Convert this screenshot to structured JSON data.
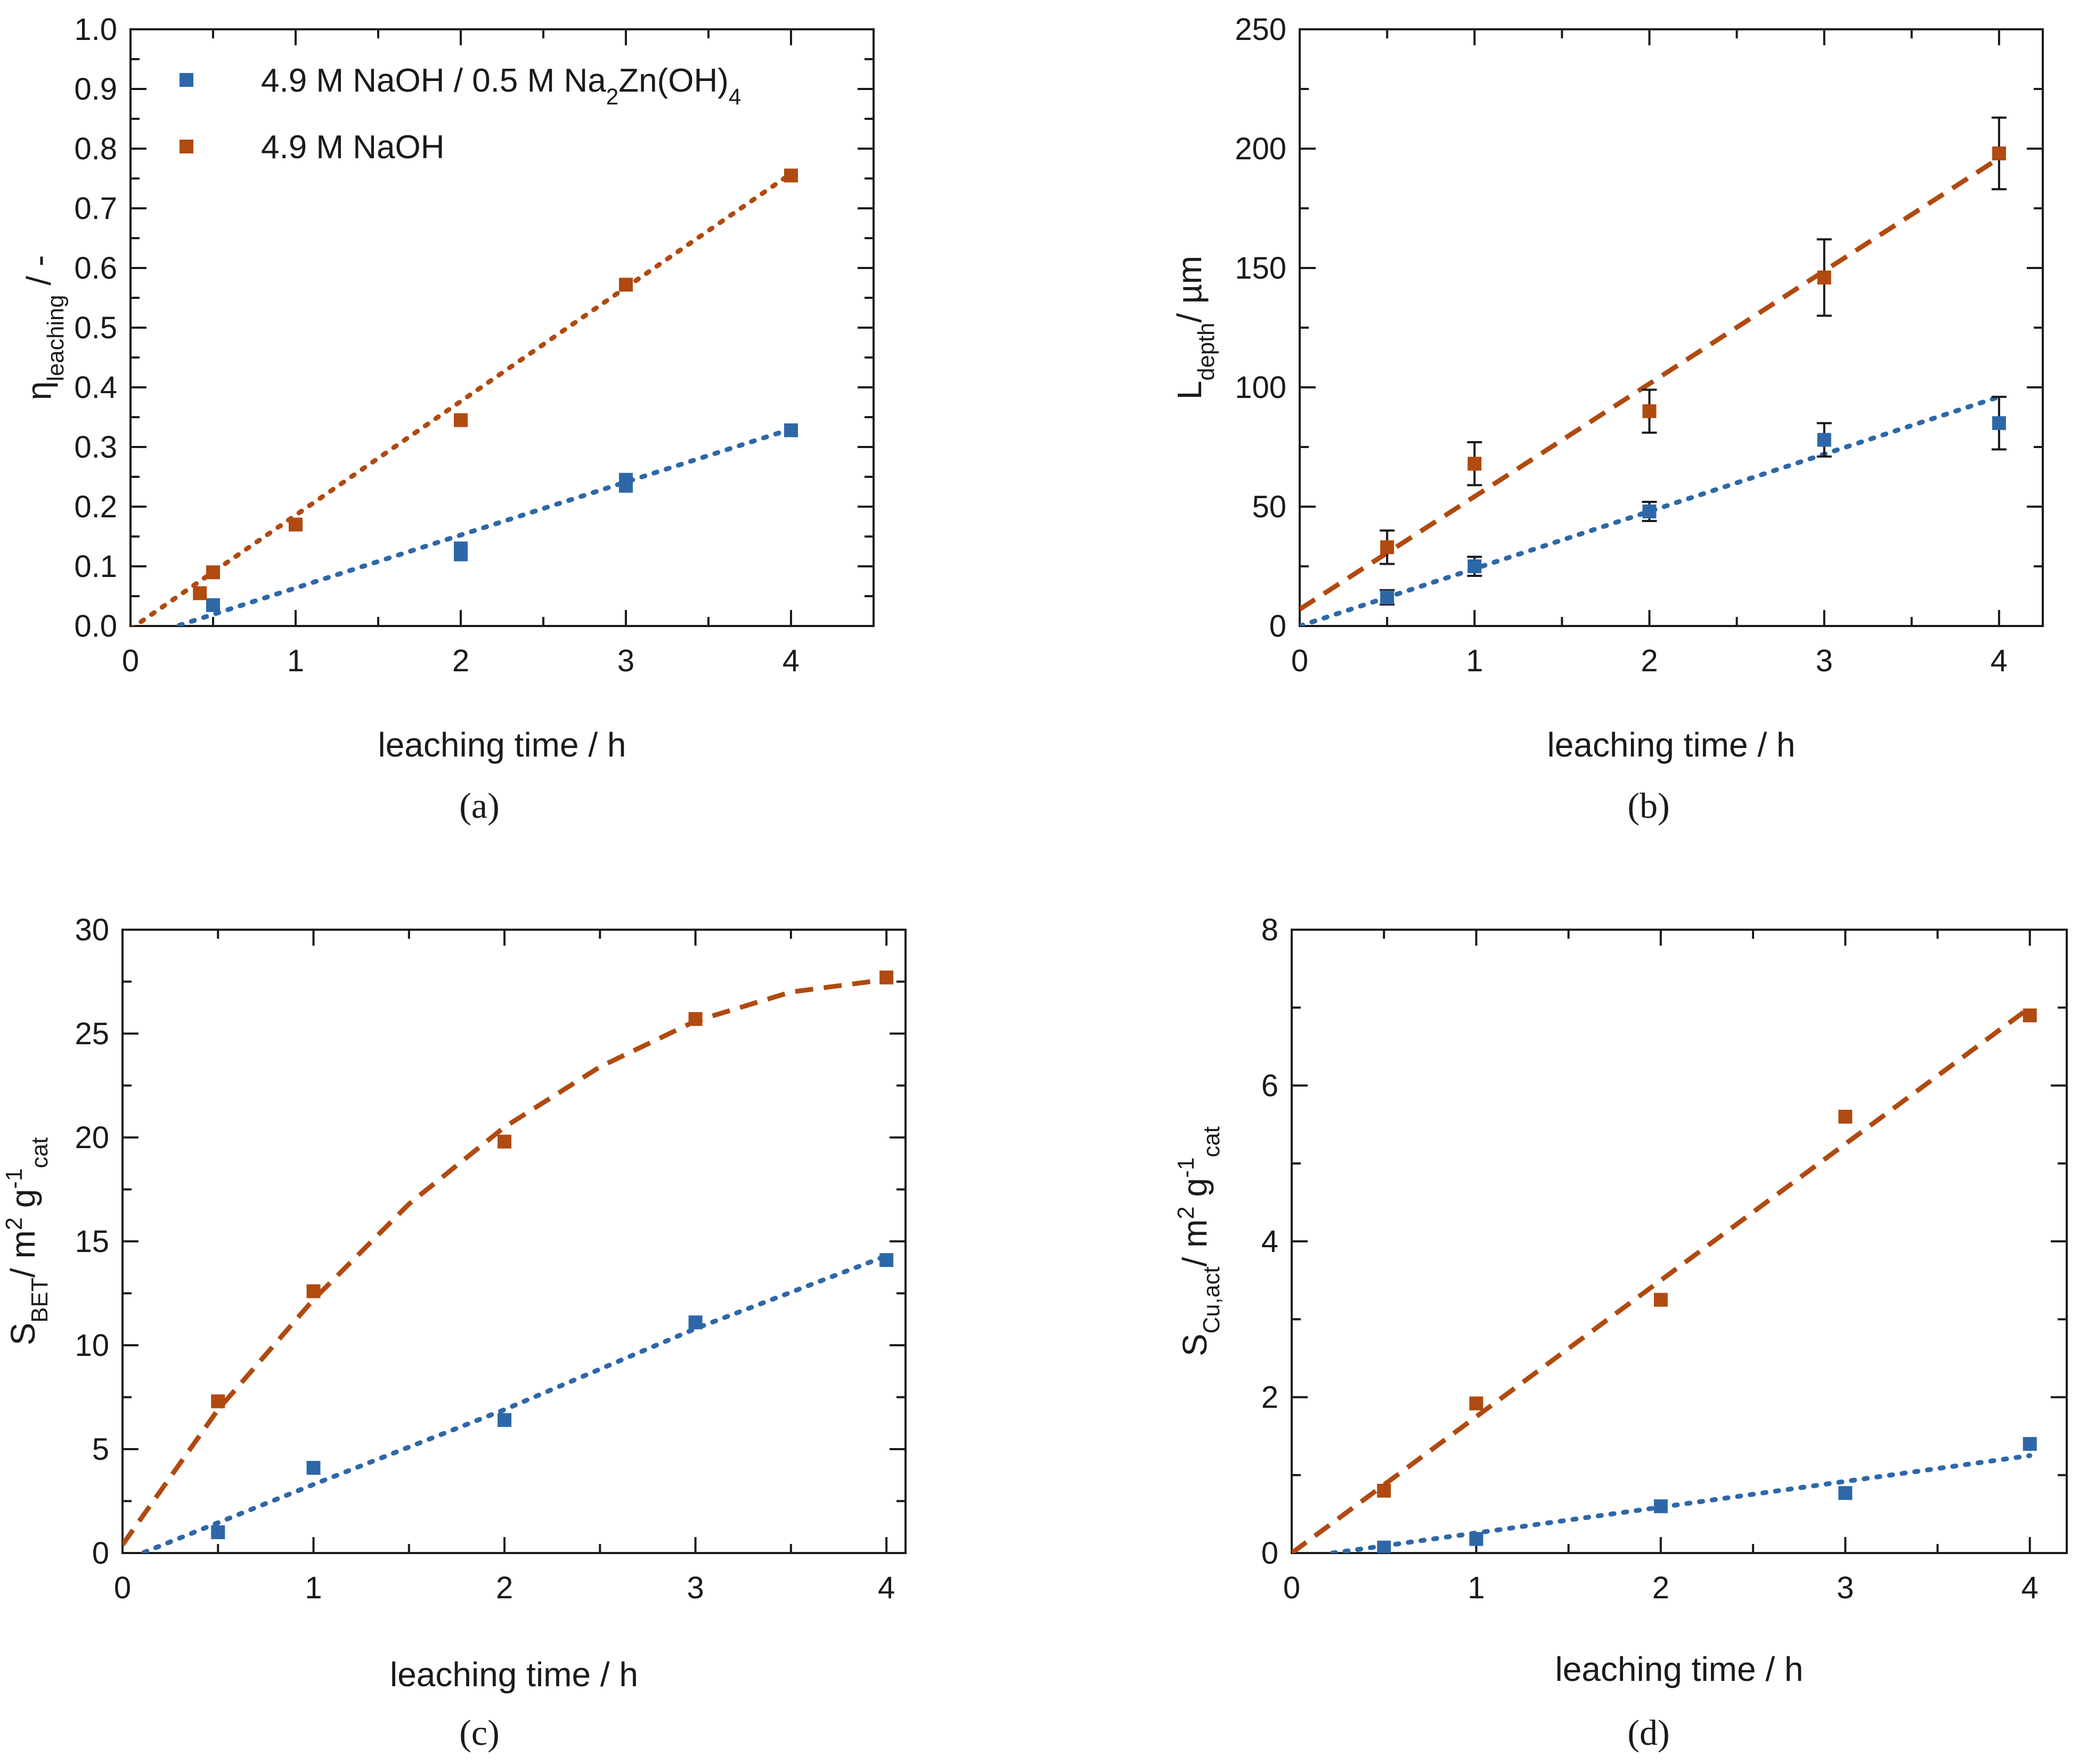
{
  "colors": {
    "blue": "#2e67a8",
    "orange": "#b04a10",
    "axis": "#1a1a1a"
  },
  "chart_data": [
    {
      "id": "a",
      "type": "scatter",
      "panel_label": "(a)",
      "xlabel": "leaching time /  h",
      "ylabel": {
        "base": "η",
        "sub": "leaching",
        "suffix": " /  -"
      },
      "xlim": [
        0,
        4.5
      ],
      "ylim": [
        0,
        1.0
      ],
      "xticks": [
        0,
        1,
        2,
        3,
        4
      ],
      "yticks": [
        0.0,
        0.1,
        0.2,
        0.3,
        0.4,
        0.5,
        0.6,
        0.7,
        0.8,
        0.9,
        1.0
      ],
      "ytick_labels": [
        "0.0",
        "0.1",
        "0.2",
        "0.3",
        "0.4",
        "0.5",
        "0.6",
        "0.7",
        "0.8",
        "0.9",
        "1.0"
      ],
      "legend": {
        "position": "top-left",
        "entries": [
          {
            "series": 0,
            "parts": [
              [
                "4.9 M NaOH / 0.5 M Na",
                ""
              ],
              [
                "2",
                "sub"
              ],
              [
                "Zn(OH)",
                ""
              ],
              [
                "4",
                "sub"
              ]
            ]
          },
          {
            "series": 1,
            "parts": [
              [
                "4.9 M NaOH",
                ""
              ]
            ]
          }
        ]
      },
      "series": [
        {
          "name": "4.9 M NaOH / 0.5 M Na2Zn(OH)4",
          "color": "blue",
          "x": [
            0.5,
            2,
            2,
            3,
            3,
            4
          ],
          "y": [
            0.035,
            0.13,
            0.12,
            0.245,
            0.235,
            0.328
          ],
          "fit": {
            "style": "dotted",
            "x": [
              0,
              4
            ],
            "y": [
              -0.025,
              0.33
            ]
          }
        },
        {
          "name": "4.9 M NaOH",
          "color": "orange",
          "x": [
            0.42,
            0.5,
            1,
            2,
            3,
            4
          ],
          "y": [
            0.055,
            0.09,
            0.17,
            0.345,
            0.572,
            0.755
          ],
          "fit": {
            "style": "dotted",
            "x": [
              0,
              4
            ],
            "y": [
              -0.005,
              0.758
            ]
          }
        }
      ]
    },
    {
      "id": "b",
      "type": "scatter",
      "panel_label": "(b)",
      "xlabel": "leaching time /  h",
      "ylabel": {
        "base": "L",
        "sub": "depth",
        "suffix": "/  µm"
      },
      "xlim": [
        0,
        4.25
      ],
      "ylim": [
        0,
        250
      ],
      "xticks": [
        0,
        1,
        2,
        3,
        4
      ],
      "yticks": [
        0,
        50,
        100,
        150,
        200,
        250
      ],
      "ytick_labels": [
        "0",
        "50",
        "100",
        "150",
        "200",
        "250"
      ],
      "series": [
        {
          "name": "4.9 M NaOH / 0.5 M Na2Zn(OH)4",
          "color": "blue",
          "x": [
            0.5,
            1,
            2,
            3,
            4
          ],
          "y": [
            12,
            25,
            48,
            78,
            85
          ],
          "err": [
            3,
            4,
            4,
            7,
            11
          ],
          "fit": {
            "style": "dotted",
            "x": [
              0,
              4
            ],
            "y": [
              0,
              96
            ]
          }
        },
        {
          "name": "4.9 M NaOH",
          "color": "orange",
          "x": [
            0.5,
            1,
            2,
            3,
            4
          ],
          "y": [
            33,
            68,
            90,
            146,
            198
          ],
          "err": [
            7,
            9,
            9,
            16,
            15
          ],
          "fit": {
            "style": "dashed",
            "x": [
              0,
              4
            ],
            "y": [
              7,
              196
            ]
          }
        }
      ]
    },
    {
      "id": "c",
      "type": "scatter",
      "panel_label": "(c)",
      "xlabel": "leaching time /  h",
      "ylabel": {
        "base": "S",
        "sub": "BET",
        "suffix": "/  m",
        "sup2": "2",
        "mid": " g",
        "sup3": "-1",
        "sub3": "cat"
      },
      "xlim": [
        0,
        4.1
      ],
      "ylim": [
        0,
        30
      ],
      "xticks": [
        0,
        1,
        2,
        3,
        4
      ],
      "yticks": [
        0,
        5,
        10,
        15,
        20,
        25,
        30
      ],
      "ytick_labels": [
        "0",
        "5",
        "10",
        "15",
        "20",
        "25",
        "30"
      ],
      "series": [
        {
          "name": "4.9 M NaOH / 0.5 M Na2Zn(OH)4",
          "color": "blue",
          "x": [
            0.5,
            1,
            2,
            3,
            4
          ],
          "y": [
            1.0,
            4.1,
            6.4,
            11.1,
            14.1
          ],
          "fit": {
            "style": "dotted",
            "x": [
              0.05,
              1,
              2,
              3,
              4
            ],
            "y": [
              -0.2,
              3.3,
              6.9,
              10.8,
              14.3
            ]
          }
        },
        {
          "name": "4.9 M NaOH",
          "color": "orange",
          "x": [
            0.5,
            1,
            2,
            3,
            4
          ],
          "y": [
            7.3,
            12.6,
            19.8,
            25.7,
            27.7
          ],
          "fit": {
            "style": "dashed",
            "x": [
              0,
              0.5,
              1,
              1.5,
              2,
              2.5,
              3,
              3.5,
              4
            ],
            "y": [
              0.4,
              6.9,
              12.2,
              16.8,
              20.5,
              23.4,
              25.6,
              27.0,
              27.6
            ]
          }
        }
      ]
    },
    {
      "id": "d",
      "type": "scatter",
      "panel_label": "(d)",
      "xlabel": "leaching time /  h",
      "ylabel": {
        "base": "S",
        "sub": "Cu,act",
        "suffix": "/  m",
        "sup2": "2",
        "mid": " g",
        "sup3": "-1",
        "sub3": "cat"
      },
      "xlim": [
        0,
        4.2
      ],
      "ylim": [
        0,
        8
      ],
      "xticks": [
        0,
        1,
        2,
        3,
        4
      ],
      "yticks": [
        0,
        2,
        4,
        6,
        8
      ],
      "ytick_labels": [
        "0",
        "2",
        "4",
        "6",
        "8"
      ],
      "series": [
        {
          "name": "4.9 M NaOH / 0.5 M Na2Zn(OH)4",
          "color": "blue",
          "x": [
            0.5,
            1,
            2,
            3,
            4
          ],
          "y": [
            0.07,
            0.18,
            0.6,
            0.77,
            1.4
          ],
          "fit": {
            "style": "dotted",
            "x": [
              0.22,
              4
            ],
            "y": [
              0,
              1.25
            ]
          }
        },
        {
          "name": "4.9 M NaOH",
          "color": "orange",
          "x": [
            0.5,
            1,
            2,
            3,
            4
          ],
          "y": [
            0.8,
            1.92,
            3.25,
            5.6,
            6.9
          ],
          "fit": {
            "style": "dashed",
            "x": [
              0,
              4
            ],
            "y": [
              0,
              7.0
            ]
          }
        }
      ]
    }
  ]
}
